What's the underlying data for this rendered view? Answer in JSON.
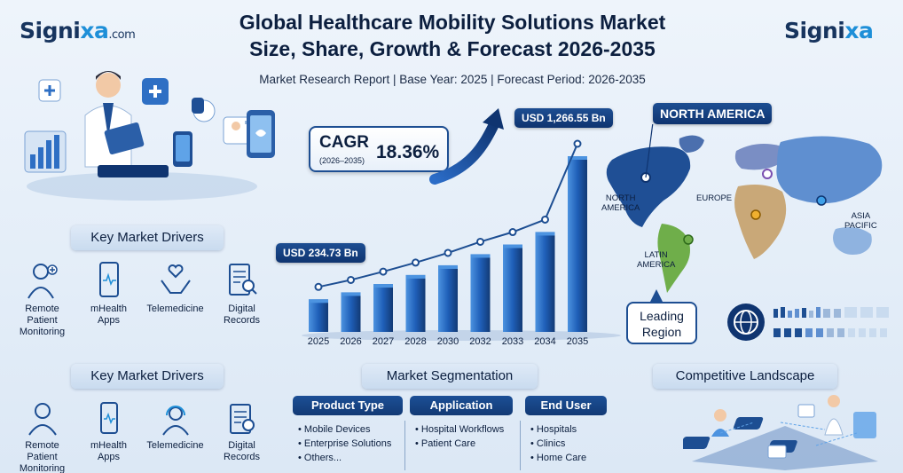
{
  "brand": {
    "left_logo_main": "Signi",
    "left_logo_x": "xa",
    "left_logo_suffix": ".com",
    "right_logo_main": "Signi",
    "right_logo_x": "xa"
  },
  "header": {
    "title_line1": "Global Healthcare Mobility Solutions Market",
    "title_line2": "Size, Share, Growth & Forecast 2026-2035",
    "subtitle": "Market Research Report | Base Year: 2025 | Forecast Period: 2026-2035"
  },
  "cagr": {
    "label": "CAGR",
    "period": "(2026–2035)",
    "value": "18.36%"
  },
  "callouts": {
    "start_value": "USD 234.73 Bn",
    "end_value": "USD 1,266.55 Bn"
  },
  "chart_data": {
    "type": "bar",
    "categories": [
      "2025",
      "2026",
      "2027",
      "2028",
      "2030",
      "2032",
      "2033",
      "2034",
      "2035"
    ],
    "values": [
      234.73,
      285,
      345,
      410,
      480,
      560,
      630,
      720,
      1266.55
    ],
    "overlay": "line",
    "title": "",
    "xlabel": "",
    "ylabel": "",
    "grid": false,
    "colors": {
      "bar": "#1f5fb8",
      "bar_light": "#4c93e0",
      "line": "#1d4e92"
    }
  },
  "drivers_top": {
    "heading": "Key Market Drivers",
    "items": [
      {
        "label_1": "Remote Patient",
        "label_2": "Monitoring",
        "icon": "doctor-icon"
      },
      {
        "label_1": "mHealth",
        "label_2": "Apps",
        "icon": "smartphone-icon"
      },
      {
        "label_1": "Telemedicine",
        "label_2": "",
        "icon": "hands-heart-icon"
      },
      {
        "label_1": "Digital",
        "label_2": "Records",
        "icon": "clipboard-search-icon"
      }
    ]
  },
  "drivers_bottom": {
    "heading": "Key Market Drivers",
    "items": [
      {
        "label_1": "Remote Patient",
        "label_2": "Monitoring",
        "icon": "patient-icon"
      },
      {
        "label_1": "mHealth",
        "label_2": "Apps",
        "icon": "smartphone-icon"
      },
      {
        "label_1": "Telemedicine",
        "label_2": "",
        "icon": "headset-icon"
      },
      {
        "label_1": "Digital",
        "label_2": "Records",
        "icon": "clipboard-search-icon"
      }
    ]
  },
  "segmentation": {
    "heading": "Market Segmentation",
    "columns": [
      {
        "head": "Product Type",
        "items": [
          "Mobile Devices",
          "Enterprise Solutions",
          "Others..."
        ]
      },
      {
        "head": "Application",
        "items": [
          "Hospital Workflows",
          "Patient Care"
        ]
      },
      {
        "head": "End User",
        "items": [
          "Hospitals",
          "Clinics",
          "Home Care"
        ]
      }
    ]
  },
  "map": {
    "highlight": "NORTH AMERICA",
    "regions": [
      "NORTH",
      "AMERICA",
      "EUROPE",
      "ASIA",
      "PACIFIC",
      "LATIN",
      "AMERICA"
    ],
    "leading_1": "Leading",
    "leading_2": "Region",
    "colors": {
      "north_america": "#1f4f95",
      "europe": "#7a8ec4",
      "asia": "#5f8fd0",
      "latin": "#6fae4a",
      "africa": "#c9a878"
    }
  },
  "competitive": {
    "heading": "Competitive Landscape"
  }
}
